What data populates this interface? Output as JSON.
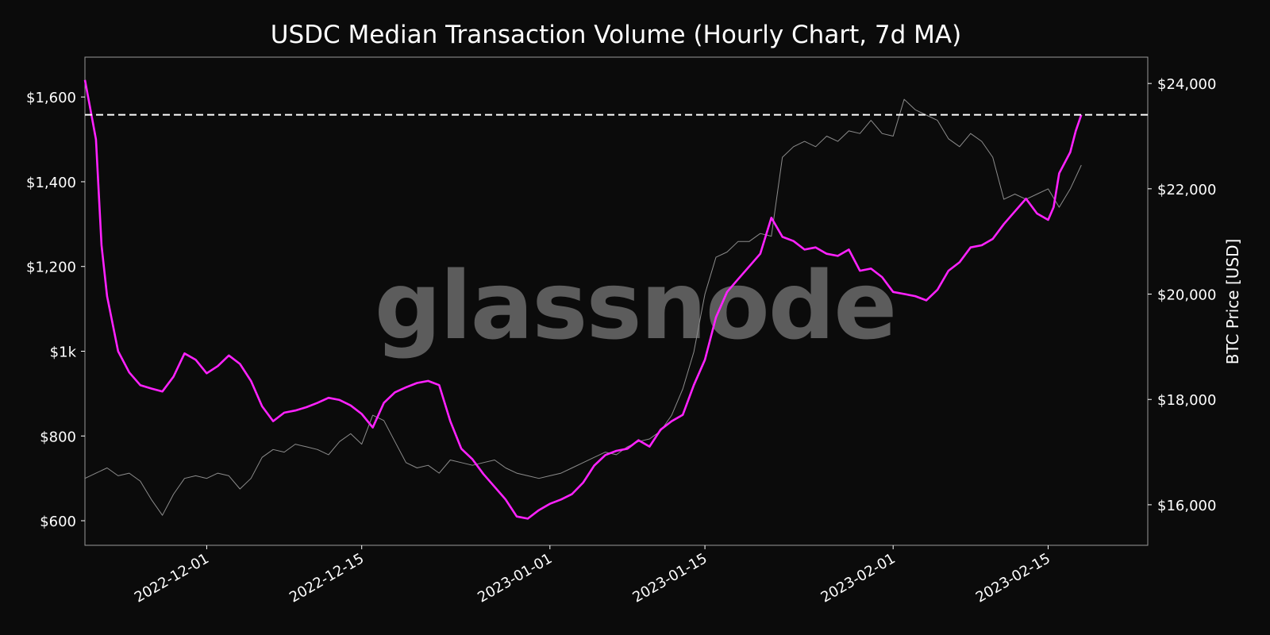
{
  "chart_data": {
    "type": "line",
    "title": "USDC Median Transaction Volume (Hourly Chart, 7d MA)",
    "watermark": "glassnode",
    "xlabel": "",
    "ylabel_left": "",
    "ylabel_right": "BTC Price [USD]",
    "x_range": [
      "2022-11-20",
      "2023-02-24"
    ],
    "y_left_range": [
      542,
      1694
    ],
    "y_right_range": [
      15230,
      24500
    ],
    "x_ticks": [
      {
        "date": "2022-12-01",
        "label": "2022-12-01"
      },
      {
        "date": "2022-12-15",
        "label": "2022-12-15"
      },
      {
        "date": "2023-01-01",
        "label": "2023-01-01"
      },
      {
        "date": "2023-01-15",
        "label": "2023-01-15"
      },
      {
        "date": "2023-02-01",
        "label": "2023-02-01"
      },
      {
        "date": "2023-02-15",
        "label": "2023-02-15"
      }
    ],
    "y_left_ticks": [
      {
        "value": 600,
        "label": "$600"
      },
      {
        "value": 800,
        "label": "$800"
      },
      {
        "value": 1000,
        "label": "$1k"
      },
      {
        "value": 1200,
        "label": "$1,200"
      },
      {
        "value": 1400,
        "label": "$1,400"
      },
      {
        "value": 1600,
        "label": "$1,600"
      }
    ],
    "y_right_ticks": [
      {
        "value": 16000,
        "label": "$16,000"
      },
      {
        "value": 18000,
        "label": "$18,000"
      },
      {
        "value": 20000,
        "label": "$20,000"
      },
      {
        "value": 22000,
        "label": "$22,000"
      },
      {
        "value": 24000,
        "label": "$24,000"
      }
    ],
    "reference_line": {
      "axis": "left",
      "value": 1558,
      "style": "dashed",
      "color": "#ffffff"
    },
    "series": [
      {
        "axis": "left",
        "color": "#ff22ff",
        "points": [
          [
            "2022-11-20",
            1640
          ],
          [
            "2022-11-20T12",
            1570
          ],
          [
            "2022-11-21",
            1500
          ],
          [
            "2022-11-21T12",
            1250
          ],
          [
            "2022-11-22",
            1130
          ],
          [
            "2022-11-23",
            1000
          ],
          [
            "2022-11-24",
            950
          ],
          [
            "2022-11-25",
            920
          ],
          [
            "2022-11-26",
            912
          ],
          [
            "2022-11-27",
            905
          ],
          [
            "2022-11-28",
            940
          ],
          [
            "2022-11-29",
            995
          ],
          [
            "2022-11-30",
            980
          ],
          [
            "2022-12-01",
            948
          ],
          [
            "2022-12-02",
            965
          ],
          [
            "2022-12-03",
            990
          ],
          [
            "2022-12-04",
            970
          ],
          [
            "2022-12-05",
            930
          ],
          [
            "2022-12-06",
            870
          ],
          [
            "2022-12-07",
            835
          ],
          [
            "2022-12-08",
            855
          ],
          [
            "2022-12-09",
            860
          ],
          [
            "2022-12-10",
            868
          ],
          [
            "2022-12-11",
            878
          ],
          [
            "2022-12-12",
            890
          ],
          [
            "2022-12-13",
            885
          ],
          [
            "2022-12-14",
            872
          ],
          [
            "2022-12-15",
            852
          ],
          [
            "2022-12-16",
            820
          ],
          [
            "2022-12-17",
            878
          ],
          [
            "2022-12-18",
            903
          ],
          [
            "2022-12-19",
            915
          ],
          [
            "2022-12-20",
            925
          ],
          [
            "2022-12-21",
            930
          ],
          [
            "2022-12-22",
            920
          ],
          [
            "2022-12-23",
            835
          ],
          [
            "2022-12-24",
            770
          ],
          [
            "2022-12-25",
            745
          ],
          [
            "2022-12-26",
            710
          ],
          [
            "2022-12-27",
            680
          ],
          [
            "2022-12-28",
            650
          ],
          [
            "2022-12-29",
            610
          ],
          [
            "2022-12-30",
            605
          ],
          [
            "2022-12-31",
            625
          ],
          [
            "2023-01-01",
            640
          ],
          [
            "2023-01-02",
            650
          ],
          [
            "2023-01-03",
            663
          ],
          [
            "2023-01-04",
            690
          ],
          [
            "2023-01-05",
            730
          ],
          [
            "2023-01-06",
            755
          ],
          [
            "2023-01-07",
            765
          ],
          [
            "2023-01-08",
            770
          ],
          [
            "2023-01-09",
            790
          ],
          [
            "2023-01-10",
            775
          ],
          [
            "2023-01-11",
            815
          ],
          [
            "2023-01-12",
            835
          ],
          [
            "2023-01-13",
            850
          ],
          [
            "2023-01-14",
            920
          ],
          [
            "2023-01-15",
            980
          ],
          [
            "2023-01-16",
            1080
          ],
          [
            "2023-01-17",
            1140
          ],
          [
            "2023-01-18",
            1170
          ],
          [
            "2023-01-19",
            1200
          ],
          [
            "2023-01-20",
            1230
          ],
          [
            "2023-01-21",
            1315
          ],
          [
            "2023-01-22",
            1270
          ],
          [
            "2023-01-23",
            1260
          ],
          [
            "2023-01-24",
            1240
          ],
          [
            "2023-01-25",
            1245
          ],
          [
            "2023-01-26",
            1230
          ],
          [
            "2023-01-27",
            1225
          ],
          [
            "2023-01-28",
            1240
          ],
          [
            "2023-01-29",
            1190
          ],
          [
            "2023-01-30",
            1195
          ],
          [
            "2023-01-31",
            1175
          ],
          [
            "2023-02-01",
            1140
          ],
          [
            "2023-02-02",
            1135
          ],
          [
            "2023-02-03",
            1130
          ],
          [
            "2023-02-04",
            1120
          ],
          [
            "2023-02-05",
            1145
          ],
          [
            "2023-02-06",
            1190
          ],
          [
            "2023-02-07",
            1210
          ],
          [
            "2023-02-08",
            1245
          ],
          [
            "2023-02-09",
            1250
          ],
          [
            "2023-02-10",
            1265
          ],
          [
            "2023-02-11",
            1300
          ],
          [
            "2023-02-12",
            1330
          ],
          [
            "2023-02-13",
            1360
          ],
          [
            "2023-02-14",
            1325
          ],
          [
            "2023-02-15",
            1310
          ],
          [
            "2023-02-15T12",
            1340
          ],
          [
            "2023-02-16",
            1420
          ],
          [
            "2023-02-17",
            1470
          ],
          [
            "2023-02-17T12",
            1520
          ],
          [
            "2023-02-18",
            1558
          ]
        ]
      },
      {
        "axis": "right",
        "color": "#8c8c8c",
        "points": [
          [
            "2022-11-20",
            16500
          ],
          [
            "2022-11-21",
            16600
          ],
          [
            "2022-11-22",
            16700
          ],
          [
            "2022-11-23",
            16550
          ],
          [
            "2022-11-24",
            16600
          ],
          [
            "2022-11-25",
            16450
          ],
          [
            "2022-11-26",
            16100
          ],
          [
            "2022-11-27",
            15800
          ],
          [
            "2022-11-28",
            16200
          ],
          [
            "2022-11-29",
            16500
          ],
          [
            "2022-11-30",
            16550
          ],
          [
            "2022-12-01",
            16500
          ],
          [
            "2022-12-02",
            16600
          ],
          [
            "2022-12-03",
            16550
          ],
          [
            "2022-12-04",
            16300
          ],
          [
            "2022-12-05",
            16500
          ],
          [
            "2022-12-06",
            16900
          ],
          [
            "2022-12-07",
            17050
          ],
          [
            "2022-12-08",
            17000
          ],
          [
            "2022-12-09",
            17150
          ],
          [
            "2022-12-10",
            17100
          ],
          [
            "2022-12-11",
            17050
          ],
          [
            "2022-12-12",
            16950
          ],
          [
            "2022-12-13",
            17200
          ],
          [
            "2022-12-14",
            17350
          ],
          [
            "2022-12-15",
            17150
          ],
          [
            "2022-12-16",
            17700
          ],
          [
            "2022-12-17",
            17600
          ],
          [
            "2022-12-18",
            17200
          ],
          [
            "2022-12-19",
            16800
          ],
          [
            "2022-12-20",
            16700
          ],
          [
            "2022-12-21",
            16750
          ],
          [
            "2022-12-22",
            16600
          ],
          [
            "2022-12-23",
            16850
          ],
          [
            "2022-12-24",
            16800
          ],
          [
            "2022-12-25",
            16750
          ],
          [
            "2022-12-26",
            16800
          ],
          [
            "2022-12-27",
            16850
          ],
          [
            "2022-12-28",
            16700
          ],
          [
            "2022-12-29",
            16600
          ],
          [
            "2022-12-30",
            16550
          ],
          [
            "2022-12-31",
            16500
          ],
          [
            "2023-01-01",
            16550
          ],
          [
            "2023-01-02",
            16600
          ],
          [
            "2023-01-03",
            16700
          ],
          [
            "2023-01-04",
            16800
          ],
          [
            "2023-01-05",
            16900
          ],
          [
            "2023-01-06",
            17000
          ],
          [
            "2023-01-07",
            16950
          ],
          [
            "2023-01-08",
            17100
          ],
          [
            "2023-01-09",
            17200
          ],
          [
            "2023-01-10",
            17250
          ],
          [
            "2023-01-11",
            17400
          ],
          [
            "2023-01-12",
            17700
          ],
          [
            "2023-01-13",
            18200
          ],
          [
            "2023-01-14",
            18900
          ],
          [
            "2023-01-15",
            20000
          ],
          [
            "2023-01-16",
            20700
          ],
          [
            "2023-01-17",
            20800
          ],
          [
            "2023-01-18",
            21000
          ],
          [
            "2023-01-19",
            21000
          ],
          [
            "2023-01-20",
            21150
          ],
          [
            "2023-01-21",
            21100
          ],
          [
            "2023-01-22",
            22600
          ],
          [
            "2023-01-23",
            22800
          ],
          [
            "2023-01-24",
            22900
          ],
          [
            "2023-01-25",
            22800
          ],
          [
            "2023-01-26",
            23000
          ],
          [
            "2023-01-27",
            22900
          ],
          [
            "2023-01-28",
            23100
          ],
          [
            "2023-01-29",
            23050
          ],
          [
            "2023-01-30",
            23300
          ],
          [
            "2023-01-31",
            23050
          ],
          [
            "2023-02-01",
            23000
          ],
          [
            "2023-02-02",
            23700
          ],
          [
            "2023-02-03",
            23500
          ],
          [
            "2023-02-04",
            23400
          ],
          [
            "2023-02-05",
            23300
          ],
          [
            "2023-02-06",
            22950
          ],
          [
            "2023-02-07",
            22800
          ],
          [
            "2023-02-08",
            23050
          ],
          [
            "2023-02-09",
            22900
          ],
          [
            "2023-02-10",
            22600
          ],
          [
            "2023-02-11",
            21800
          ],
          [
            "2023-02-12",
            21900
          ],
          [
            "2023-02-13",
            21800
          ],
          [
            "2023-02-14",
            21900
          ],
          [
            "2023-02-15",
            22000
          ],
          [
            "2023-02-16",
            21650
          ],
          [
            "2023-02-17",
            22000
          ],
          [
            "2023-02-18",
            22450
          ]
        ]
      }
    ]
  }
}
